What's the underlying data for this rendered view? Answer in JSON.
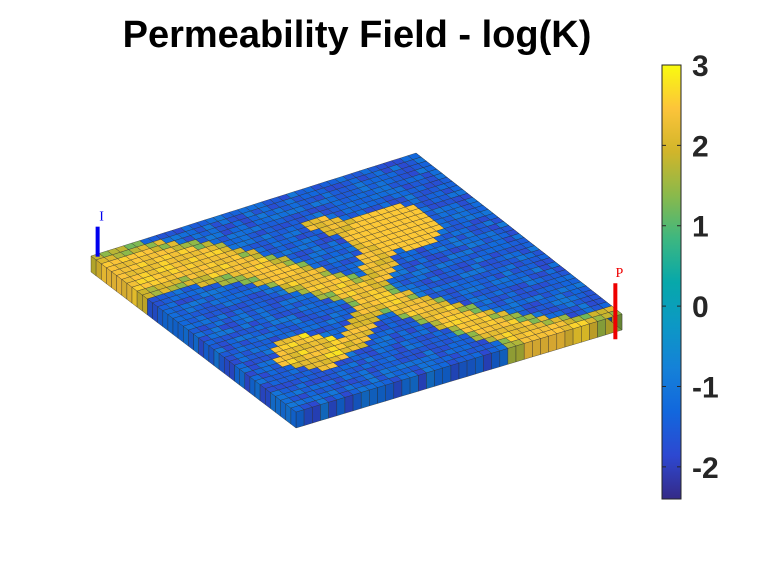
{
  "chart_data": {
    "type": "heatmap",
    "title": "Permeability Field - log(K)",
    "grid_size": [
      40,
      40
    ],
    "colormap": "parula",
    "colorbar": {
      "range": [
        -2.4,
        3
      ],
      "ticks": [
        "3",
        "2",
        "1",
        "0",
        "-1",
        "-2"
      ],
      "tick_values": [
        3,
        2,
        1,
        0,
        -1,
        -2
      ]
    },
    "wells": [
      {
        "name": "I",
        "color": "#0000ee",
        "cell": [
          0,
          0
        ]
      },
      {
        "name": "P",
        "color": "#ee0000",
        "cell": [
          39,
          39
        ]
      }
    ]
  }
}
